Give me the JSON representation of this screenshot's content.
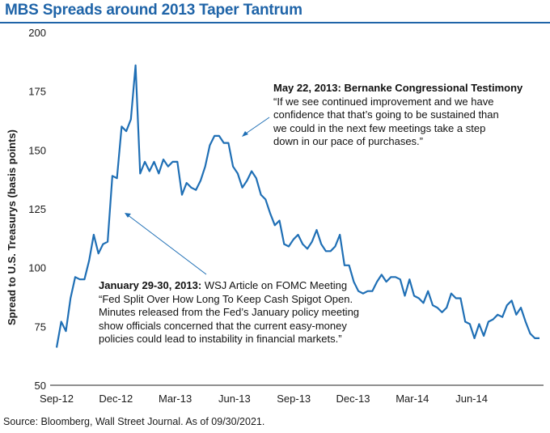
{
  "title": "MBS Spreads around 2013 Taper Tantrum",
  "source": "Source: Bloomberg, Wall Street Journal. As of 09/30/2021.",
  "annotations": {
    "may": {
      "heading": "May 22, 2013: Bernanke Congressional Testimony",
      "lines": [
        "“If we see continued improvement and we have",
        "confidence that that’s going to be sustained than",
        "we could in the next few meetings take a step",
        "down in our pace of purchases.”"
      ]
    },
    "jan": {
      "heading": "January 29-30, 2013:",
      "heading_rest": " WSJ Article on FOMC Meeting",
      "lines": [
        "“Fed Split Over How Long To Keep Cash Spigot Open.",
        "Minutes released from the Fed’s January policy meeting",
        "show officials concerned that the current easy-money",
        "policies could lead to instability in financial markets.”"
      ]
    }
  },
  "colors": {
    "line": "#1f6fb5",
    "title": "#1f64a8",
    "axis": "#222222",
    "arrow": "#1f6fb5"
  },
  "chart_data": {
    "type": "line",
    "title": "MBS Spreads around 2013 Taper Tantrum",
    "xlabel": "",
    "ylabel": "Spread to U.S. Treasurys (basis points)",
    "ylim": [
      50,
      200
    ],
    "yticks": [
      "200",
      "175",
      "150",
      "125",
      "100",
      "75",
      "50"
    ],
    "xticks": [
      "Sep-12",
      "Dec-12",
      "Mar-13",
      "Jun-13",
      "Sep-13",
      "Dec-13",
      "Mar-14",
      "Jun-14"
    ],
    "grid": false,
    "series": [
      {
        "values": [
          66,
          77,
          73,
          87,
          96,
          95,
          95,
          103,
          114,
          106,
          110,
          111,
          139,
          138,
          160,
          158,
          163,
          186,
          140,
          145,
          141,
          145,
          140,
          146,
          143,
          145,
          145,
          131,
          136,
          134,
          133,
          137,
          143,
          152,
          156,
          156,
          153,
          153,
          143,
          140,
          134,
          137,
          141,
          138,
          131,
          129,
          123,
          118,
          120,
          110,
          109,
          112,
          114,
          110,
          108,
          111,
          116,
          110,
          107,
          107,
          109,
          114,
          101,
          101,
          94,
          90,
          89,
          90,
          90,
          94,
          97,
          94,
          96,
          96,
          95,
          88,
          95,
          88,
          87,
          85,
          90,
          84,
          83,
          81,
          83,
          89,
          87,
          87,
          77,
          76,
          70,
          76,
          71,
          77,
          78,
          80,
          79,
          84,
          86,
          80,
          83,
          77,
          72,
          70,
          70
        ]
      }
    ]
  }
}
